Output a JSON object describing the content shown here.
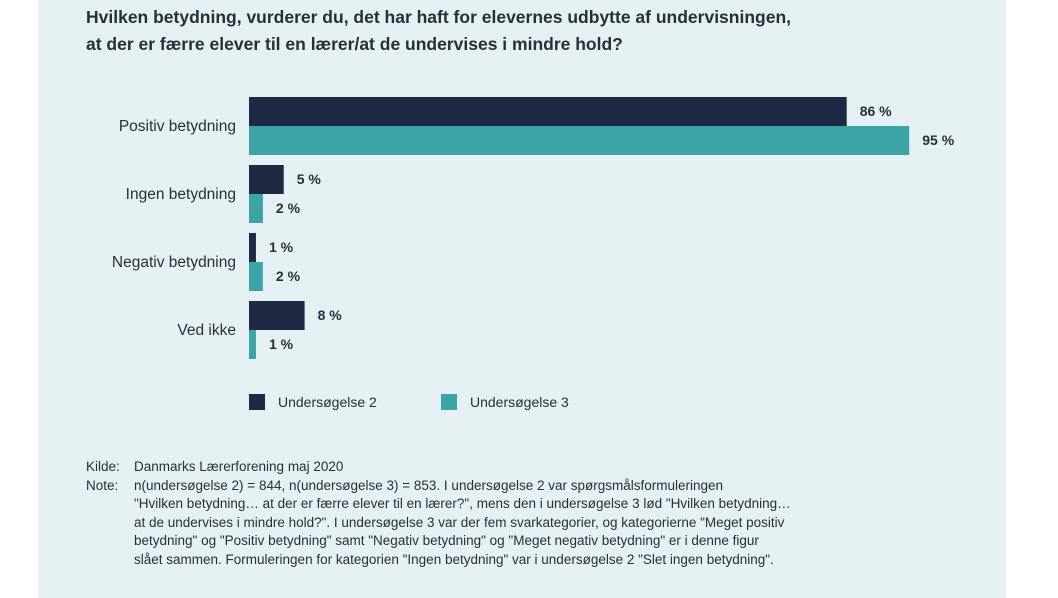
{
  "title_lines": [
    "Hvilken betydning, vurderer du, det har haft for elevernes udbytte af undervisningen,",
    "at der er færre elever til en lærer/at de undervises i mindre hold?"
  ],
  "colors": {
    "series1": "#1e2a44",
    "series2": "#3aa4a7",
    "panel": "#e6f1f3"
  },
  "chart_data": {
    "type": "bar",
    "orientation": "horizontal",
    "categories": [
      "Positiv betydning",
      "Ingen betydning",
      "Negativ betydning",
      "Ved ikke"
    ],
    "series": [
      {
        "name": "Undersøgelse 2",
        "values": [
          86,
          5,
          1,
          8
        ],
        "labels": [
          "86 %",
          "5 %",
          "1 %",
          "8 %"
        ]
      },
      {
        "name": "Undersøgelse 3",
        "values": [
          95,
          2,
          2,
          1
        ],
        "labels": [
          "95 %",
          "2 %",
          "2 %",
          "1 %"
        ]
      }
    ],
    "xlim": [
      0,
      100
    ],
    "grid": false,
    "legend": "bottom-left"
  },
  "legend": [
    {
      "label": "Undersøgelse 2"
    },
    {
      "label": "Undersøgelse 3"
    }
  ],
  "source": {
    "key": "Kilde:",
    "text": "Danmarks Lærerforening maj 2020"
  },
  "note": {
    "key": "Note:",
    "lines": [
      "n(undersøgelse 2) = 844, n(undersøgelse 3) = 853. I undersøgelse 2 var spørgsmålsformuleringen",
      "\"Hvilken betydning… at der er færre elever til en lærer?\", mens den i undersøgelse 3 lød \"Hvilken betydning…",
      "at de undervises i mindre hold?\". I undersøgelse 3 var der fem svarkategorier, og kategorierne \"Meget positiv",
      "betydning\" og \"Positiv betydning\" samt \"Negativ betydning\" og \"Meget negativ betydning\" er i denne figur",
      "slået sammen. Formuleringen for kategorien \"Ingen betydning\" var i undersøgelse 2 \"Slet ingen betydning\"."
    ]
  }
}
